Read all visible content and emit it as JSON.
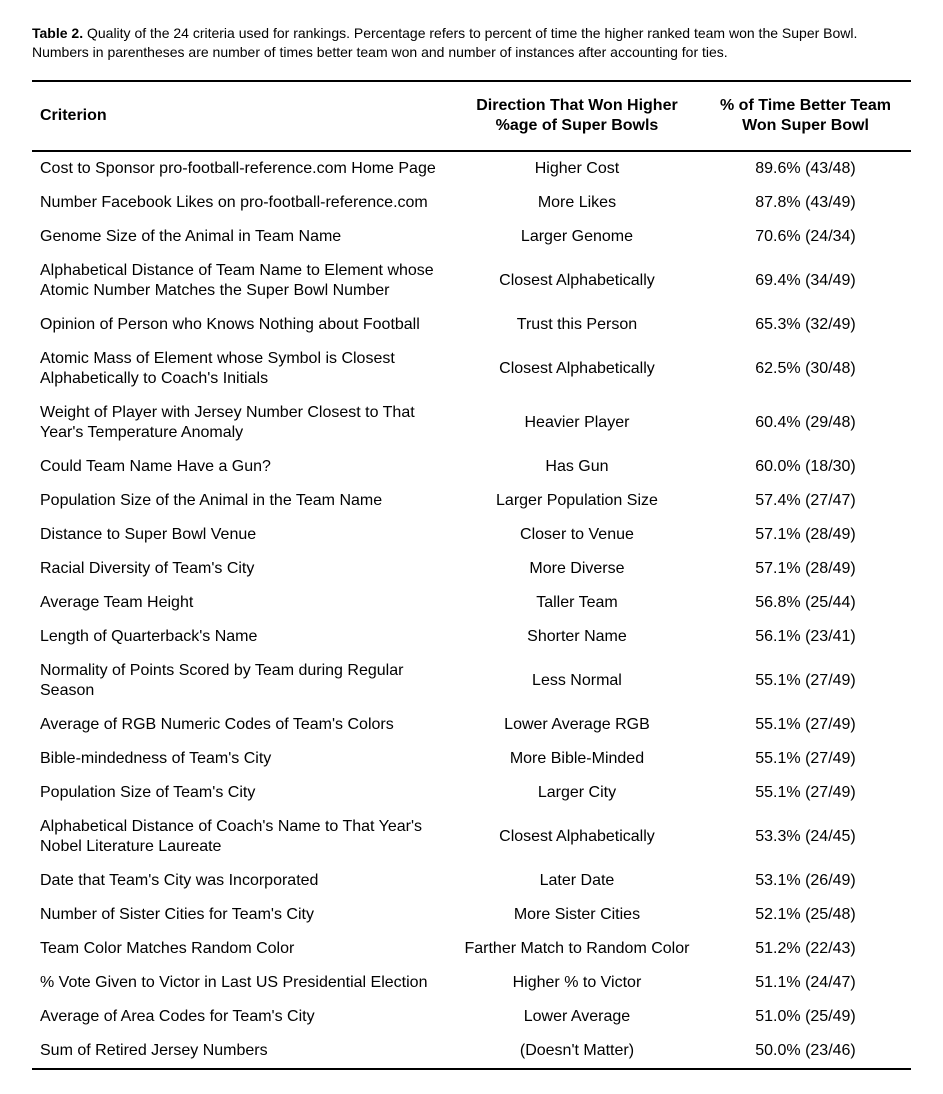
{
  "caption_label": "Table 2.",
  "caption_text": "Quality of the 24 criteria used for rankings. Percentage refers to percent of time the higher ranked team won the Super Bowl. Numbers in parentheses are number of times better team won and number of instances after accounting for ties.",
  "columns": [
    "Criterion",
    "Direction That Won Higher %age of Super Bowls",
    "% of Time Better Team Won Super Bowl"
  ],
  "rows": [
    [
      "Cost to Sponsor pro-football-reference.com Home Page",
      "Higher Cost",
      "89.6% (43/48)"
    ],
    [
      "Number Facebook Likes on pro-football-reference.com",
      "More Likes",
      "87.8% (43/49)"
    ],
    [
      "Genome Size of the Animal in Team Name",
      "Larger Genome",
      "70.6% (24/34)"
    ],
    [
      "Alphabetical Distance of Team Name to Element whose Atomic Number Matches the Super Bowl Number",
      "Closest Alphabetically",
      "69.4% (34/49)"
    ],
    [
      "Opinion of Person who Knows Nothing about Football",
      "Trust this Person",
      "65.3% (32/49)"
    ],
    [
      "Atomic Mass of Element whose Symbol is Closest Alphabetically to Coach's Initials",
      "Closest Alphabetically",
      "62.5% (30/48)"
    ],
    [
      "Weight of Player with Jersey Number Closest to That Year's Temperature Anomaly",
      "Heavier Player",
      "60.4% (29/48)"
    ],
    [
      "Could Team Name Have a Gun?",
      "Has Gun",
      "60.0% (18/30)"
    ],
    [
      "Population Size of the Animal in the Team Name",
      "Larger Population Size",
      "57.4% (27/47)"
    ],
    [
      "Distance to Super Bowl Venue",
      "Closer to Venue",
      "57.1% (28/49)"
    ],
    [
      "Racial Diversity of Team's City",
      "More Diverse",
      "57.1% (28/49)"
    ],
    [
      "Average Team Height",
      "Taller Team",
      "56.8% (25/44)"
    ],
    [
      "Length of Quarterback's Name",
      "Shorter Name",
      "56.1% (23/41)"
    ],
    [
      "Normality of Points Scored by Team during Regular Season",
      "Less Normal",
      "55.1% (27/49)"
    ],
    [
      "Average of RGB Numeric Codes of Team's Colors",
      "Lower Average RGB",
      "55.1% (27/49)"
    ],
    [
      "Bible-mindedness of Team's City",
      "More Bible-Minded",
      "55.1% (27/49)"
    ],
    [
      "Population Size of Team's City",
      "Larger City",
      "55.1% (27/49)"
    ],
    [
      "Alphabetical Distance of Coach's Name to That Year's Nobel Literature Laureate",
      "Closest Alphabetically",
      "53.3% (24/45)"
    ],
    [
      "Date that Team's City was Incorporated",
      "Later Date",
      "53.1% (26/49)"
    ],
    [
      "Number of Sister Cities for Team's City",
      "More Sister Cities",
      "52.1% (25/48)"
    ],
    [
      "Team Color Matches Random Color",
      "Farther Match to Random Color",
      "51.2% (22/43)"
    ],
    [
      "% Vote Given to Victor in Last US Presidential Election",
      "Higher % to Victor",
      "51.1% (24/47)"
    ],
    [
      "Average of Area Codes for Team's City",
      "Lower Average",
      "51.0% (25/49)"
    ],
    [
      "Sum of Retired Jersey Numbers",
      "(Doesn't Matter)",
      "50.0% (23/46)"
    ]
  ]
}
